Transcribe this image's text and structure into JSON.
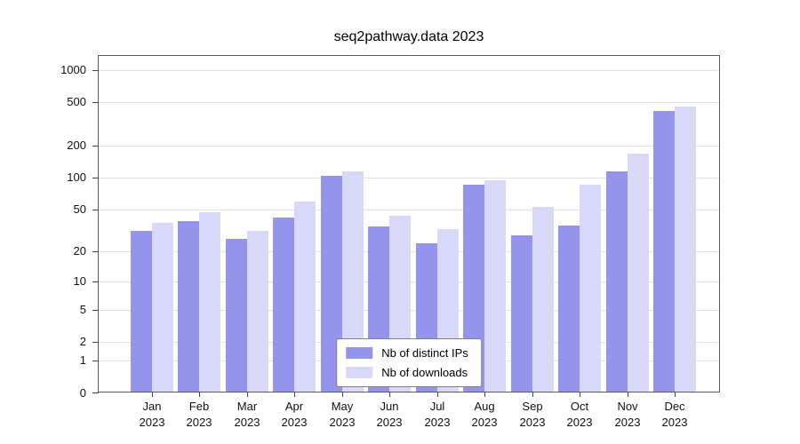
{
  "chart_data": {
    "type": "bar",
    "title": "seq2pathway.data 2023",
    "categories": [
      "Jan",
      "Feb",
      "Mar",
      "Apr",
      "May",
      "Jun",
      "Jul",
      "Aug",
      "Sep",
      "Oct",
      "Nov",
      "Dec"
    ],
    "year": "2023",
    "series": [
      {
        "name": "Nb of distinct IPs",
        "color": "#9494ec",
        "values": [
          30,
          37,
          25,
          40,
          100,
          33,
          23,
          82,
          27,
          34,
          110,
          400
        ]
      },
      {
        "name": "Nb of downloads",
        "color": "#d8d8f8",
        "values": [
          36,
          45,
          30,
          57,
          110,
          42,
          31,
          90,
          51,
          82,
          160,
          440
        ]
      }
    ],
    "y_ticks": [
      0,
      1,
      2,
      5,
      10,
      20,
      50,
      100,
      200,
      500,
      1000
    ],
    "y_scale": "log1p",
    "ylim": [
      0,
      1000
    ],
    "xlabel": "",
    "ylabel": "",
    "grid": true,
    "legend_position": "bottom-center-inside"
  }
}
